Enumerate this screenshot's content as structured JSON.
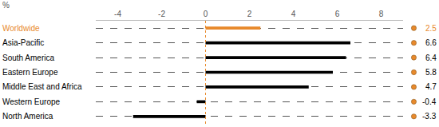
{
  "chart_data": {
    "type": "bar",
    "orientation": "horizontal",
    "xlabel": "%",
    "categories": [
      "Worldwide",
      "Asia-Pacific",
      "South America",
      "Eastern Europe",
      "Middle East and Africa",
      "Western Europe",
      "North America"
    ],
    "values": [
      2.5,
      6.6,
      6.4,
      5.8,
      4.7,
      -0.4,
      -3.3
    ],
    "colors": [
      "#e8892b",
      "#000000",
      "#000000",
      "#000000",
      "#000000",
      "#000000",
      "#000000"
    ],
    "xlim": [
      -5,
      9
    ],
    "xticks": [
      -4,
      -2,
      0,
      2,
      4,
      6,
      8
    ],
    "grid": true,
    "data_labels": true
  }
}
